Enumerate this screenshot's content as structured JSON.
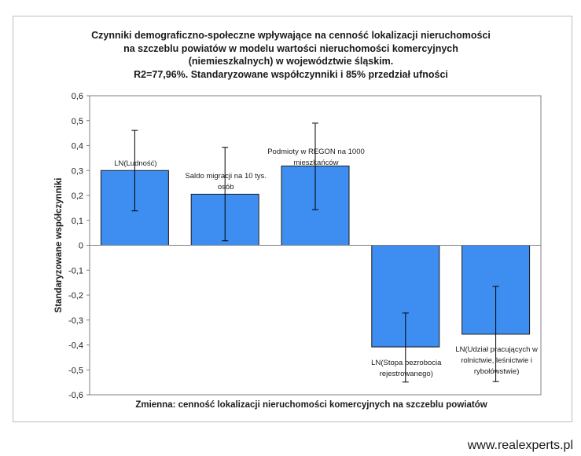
{
  "chart_data": {
    "type": "bar",
    "title_lines": [
      "Czynniki demograficzno-społeczne wpływające na cenność lokalizacji nieruchomości",
      "na szczeblu powiatów w modelu wartości nieruchomości komercyjnych",
      "(niemieszkalnych) w województwie śląskim.",
      "R2=77,96%.  Standaryzowane  współczynniki i 85% przedział ufności"
    ],
    "xlabel": "Zmienna:  cenność lokalizacji   nieruchomości  komercyjnych  na  szczeblu  powiatów",
    "ylabel": "Standaryzowane  współczynniki",
    "ylim": [
      -0.6,
      0.6
    ],
    "yticks": [
      0.6,
      0.5,
      0.4,
      0.3,
      0.2,
      0.1,
      0,
      -0.1,
      -0.2,
      -0.3,
      -0.4,
      -0.5,
      -0.6
    ],
    "ytick_labels": [
      "0,6",
      "0,5",
      "0,4",
      "0,3",
      "0,2",
      "0,1",
      "0",
      "-0,1",
      "-0,2",
      "-0,3",
      "-0,4",
      "-0,5",
      "-0,6"
    ],
    "grid": false,
    "bar_color": "#3d8ef0",
    "categories": [
      [
        "LN(Ludność)"
      ],
      [
        "Saldo migracji na 10 tys.",
        "osób"
      ],
      [
        "Podmioty w REGON na 1000",
        "mieszkańców"
      ],
      [
        "LN(Stopa bezrobocia",
        "rejestrowanego)"
      ],
      [
        "LN(Udział pracujących w",
        "rolnictwie, leśnictwie i",
        "rybołówstwie)"
      ]
    ],
    "values": [
      0.3,
      0.205,
      0.318,
      -0.408,
      -0.357
    ],
    "error_low": [
      0.138,
      0.018,
      0.143,
      -0.549,
      -0.547
    ],
    "error_high": [
      0.461,
      0.393,
      0.49,
      -0.272,
      -0.165
    ]
  },
  "footer": {
    "brand": "www.realexperts.pl"
  }
}
